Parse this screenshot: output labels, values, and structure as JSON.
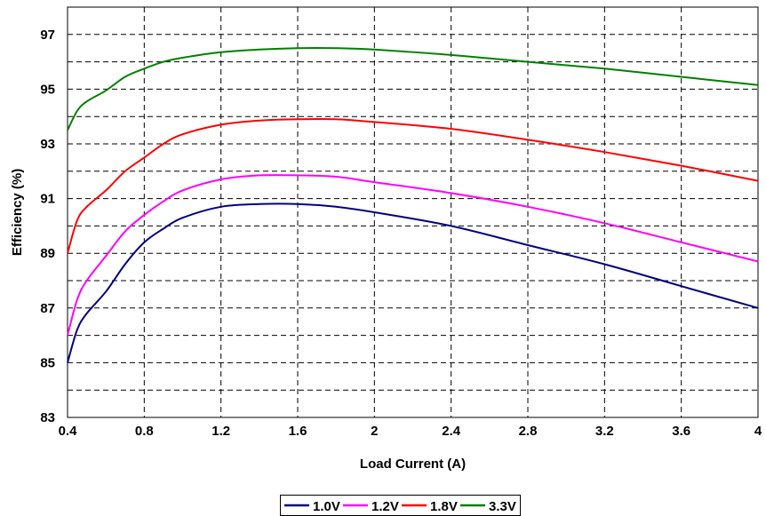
{
  "chart_data": {
    "type": "line",
    "xlabel": "Load Current (A)",
    "ylabel": "Efficiency (%)",
    "xlim": [
      0.4,
      4
    ],
    "ylim": [
      83,
      98
    ],
    "xticks": [
      0.4,
      0.8,
      1.2,
      1.6,
      2,
      2.4,
      2.8,
      3.2,
      3.6,
      4
    ],
    "xtick_labels": [
      "0.4",
      "0.8",
      "1.2",
      "1.6",
      "2",
      "2.4",
      "2.8",
      "3.2",
      "3.6",
      "4"
    ],
    "yticks": [
      83,
      85,
      87,
      89,
      91,
      93,
      95,
      97
    ],
    "ytick_labels": [
      "83",
      "85",
      "87",
      "89",
      "91",
      "93",
      "95",
      "97"
    ],
    "grid": true,
    "legend_position": "bottom",
    "series": [
      {
        "name": "1.0V",
        "color": "#000080",
        "x": [
          0.4,
          0.45,
          0.5,
          0.6,
          0.7,
          0.8,
          0.9,
          1.0,
          1.2,
          1.4,
          1.6,
          1.8,
          2.0,
          2.4,
          2.8,
          3.2,
          3.6,
          4.0
        ],
        "y": [
          85.0,
          86.2,
          86.8,
          87.6,
          88.6,
          89.4,
          89.9,
          90.3,
          90.7,
          90.8,
          90.8,
          90.7,
          90.5,
          90.0,
          89.3,
          88.6,
          87.8,
          87.0
        ]
      },
      {
        "name": "1.2V",
        "color": "#ff00ff",
        "x": [
          0.4,
          0.45,
          0.5,
          0.6,
          0.7,
          0.8,
          0.9,
          1.0,
          1.2,
          1.4,
          1.6,
          1.8,
          2.0,
          2.4,
          2.8,
          3.2,
          3.6,
          4.0
        ],
        "y": [
          86.0,
          87.3,
          88.0,
          88.9,
          89.8,
          90.4,
          90.9,
          91.3,
          91.7,
          91.85,
          91.85,
          91.8,
          91.6,
          91.2,
          90.7,
          90.1,
          89.4,
          88.7
        ]
      },
      {
        "name": "1.8V",
        "color": "#ff0000",
        "x": [
          0.4,
          0.45,
          0.5,
          0.6,
          0.7,
          0.8,
          0.9,
          1.0,
          1.2,
          1.4,
          1.6,
          1.8,
          2.0,
          2.4,
          2.8,
          3.2,
          3.6,
          4.0
        ],
        "y": [
          89.0,
          90.2,
          90.7,
          91.3,
          92.0,
          92.5,
          93.0,
          93.35,
          93.7,
          93.85,
          93.9,
          93.9,
          93.8,
          93.55,
          93.15,
          92.7,
          92.2,
          91.65
        ]
      },
      {
        "name": "3.3V",
        "color": "#008000",
        "x": [
          0.4,
          0.45,
          0.5,
          0.6,
          0.7,
          0.8,
          0.9,
          1.0,
          1.2,
          1.4,
          1.6,
          1.8,
          2.0,
          2.4,
          2.8,
          3.2,
          3.6,
          4.0
        ],
        "y": [
          93.5,
          94.2,
          94.55,
          94.95,
          95.45,
          95.75,
          96.0,
          96.15,
          96.35,
          96.45,
          96.5,
          96.5,
          96.45,
          96.25,
          96.0,
          95.75,
          95.45,
          95.15
        ]
      }
    ]
  }
}
